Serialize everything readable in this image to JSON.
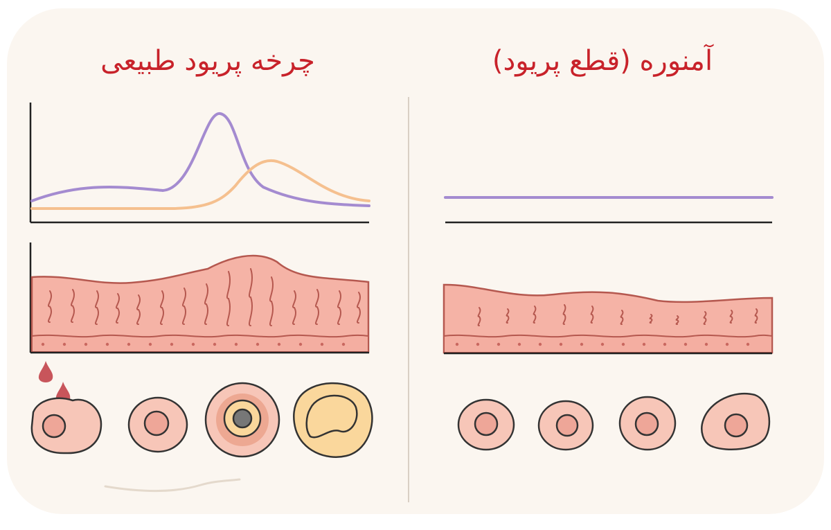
{
  "panels": {
    "normal_cycle": {
      "title": "چرخه پریود طبیعی"
    },
    "amenorrhea": {
      "title": "آمنوره (قطع پریود)"
    }
  },
  "colors": {
    "title_red": "#c8222a",
    "hormone_purple": "#a48bd0",
    "hormone_orange": "#f5c08f",
    "endometrium_fill": "#f5b3a6",
    "endometrium_line": "#b5584f",
    "follicle_fill": "#f7c6b8",
    "follicle_core": "#eea698",
    "corpus_luteum": "#fad79c",
    "blood_drop": "#c8555b",
    "axis": "#222222"
  }
}
